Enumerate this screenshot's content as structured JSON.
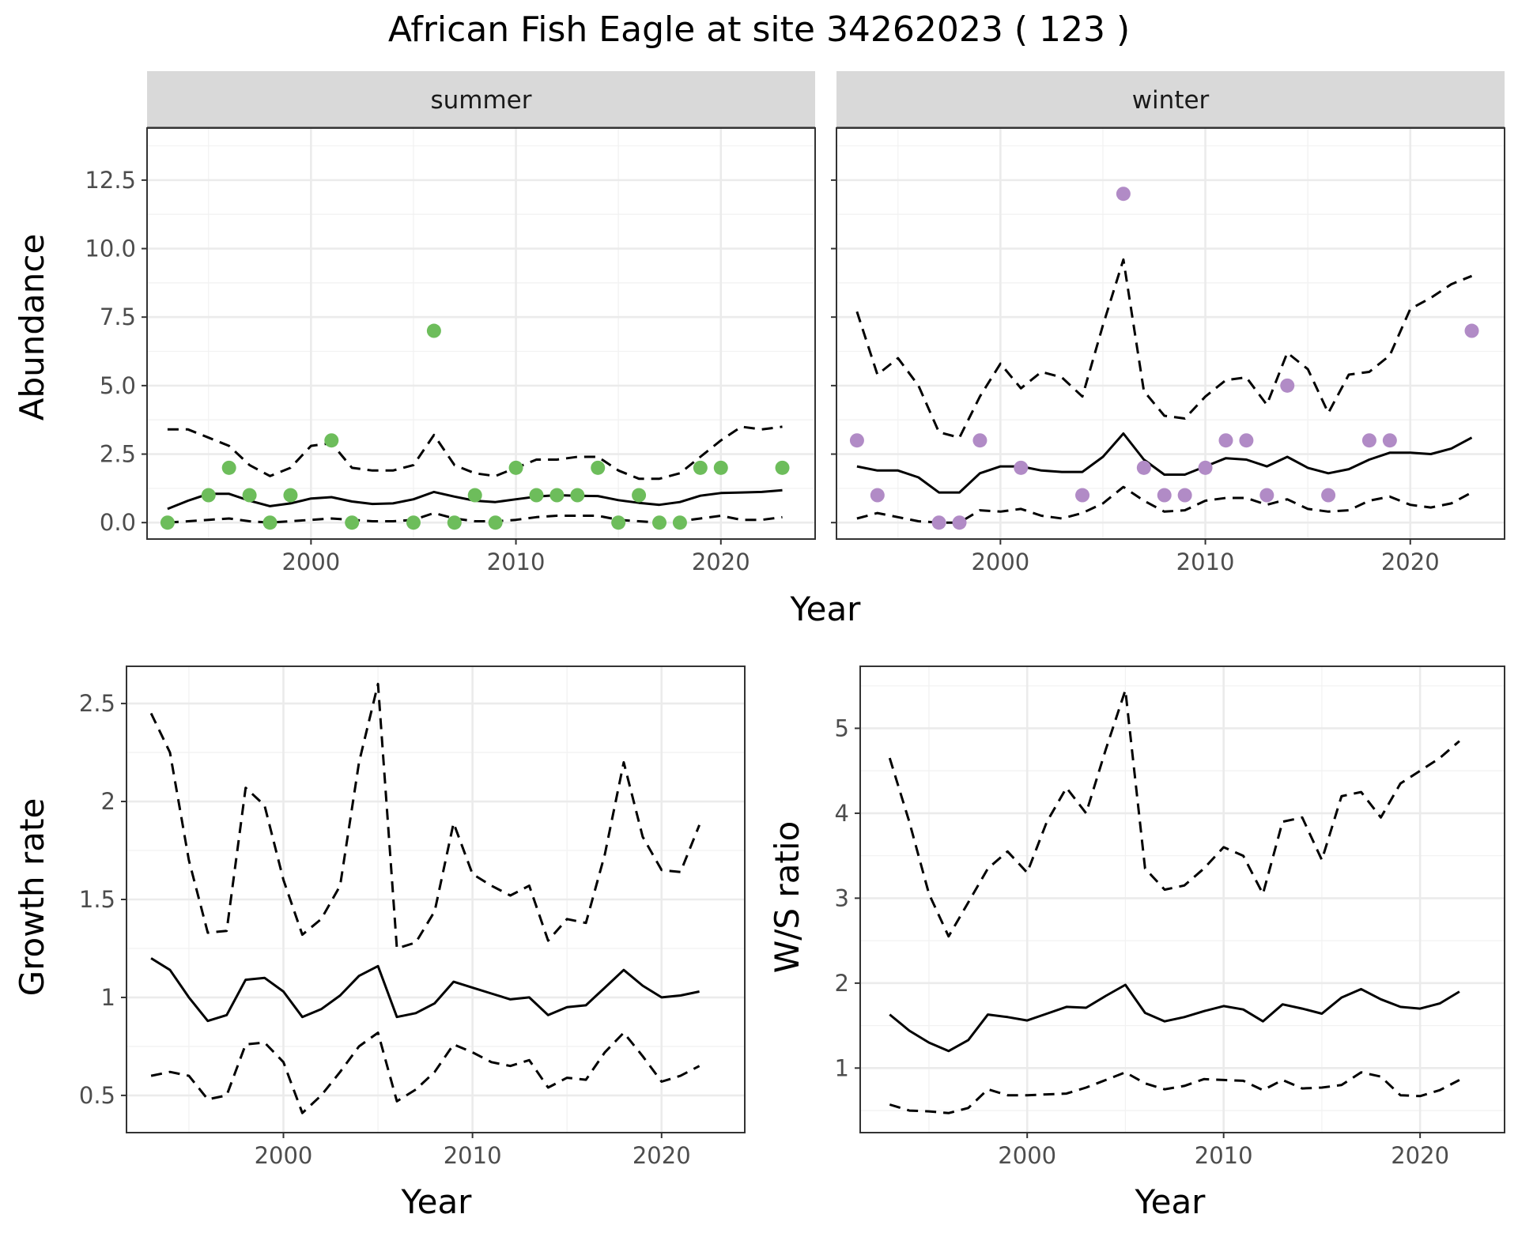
{
  "chart_data": [
    {
      "type": "scatter",
      "facet": "summer",
      "title": "African Fish Eagle at site 34262023 ( 123 )",
      "xlabel": "Year",
      "ylabel": "Abundance",
      "xlim": [
        1992.0,
        2024.6
      ],
      "ylim": [
        -0.6,
        14.4
      ],
      "x_ticks": [
        2000,
        2010,
        2020
      ],
      "y_ticks": [
        0.0,
        2.5,
        5.0,
        7.5,
        10.0,
        12.5
      ],
      "y_tick_labels": [
        "0.0",
        "2.5",
        "5.0",
        "7.5",
        "10.0",
        "12.5"
      ],
      "point_color": "#6dbd5b",
      "points": {
        "x": [
          1993,
          1995,
          1996,
          1997,
          1998,
          1999,
          2001,
          2002,
          2005,
          2006,
          2007,
          2008,
          2009,
          2010,
          2011,
          2012,
          2013,
          2014,
          2015,
          2016,
          2017,
          2018,
          2019,
          2020,
          2023
        ],
        "y": [
          0,
          1,
          2,
          1,
          0,
          1,
          3,
          0,
          0,
          7,
          0,
          1,
          0,
          2,
          1,
          1,
          1,
          2,
          0,
          1,
          0,
          0,
          2,
          2,
          2
        ]
      },
      "series": [
        {
          "role": "estimate",
          "x": [
            1993,
            1994,
            1995,
            1996,
            1997,
            1998,
            1999,
            2000,
            2001,
            2002,
            2003,
            2004,
            2005,
            2006,
            2007,
            2008,
            2009,
            2010,
            2011,
            2012,
            2013,
            2014,
            2015,
            2016,
            2017,
            2018,
            2019,
            2020,
            2021,
            2022,
            2023
          ],
          "y": [
            0.5,
            0.8,
            1.05,
            1.05,
            0.8,
            0.6,
            0.7,
            0.88,
            0.93,
            0.77,
            0.68,
            0.7,
            0.85,
            1.12,
            0.95,
            0.8,
            0.75,
            0.85,
            0.95,
            1.0,
            0.98,
            0.97,
            0.82,
            0.72,
            0.65,
            0.75,
            0.98,
            1.08,
            1.1,
            1.12,
            1.18
          ]
        },
        {
          "role": "upper",
          "x": [
            1993,
            1994,
            1995,
            1996,
            1997,
            1998,
            1999,
            2000,
            2001,
            2002,
            2003,
            2004,
            2005,
            2006,
            2007,
            2008,
            2009,
            2010,
            2011,
            2012,
            2013,
            2014,
            2015,
            2016,
            2017,
            2018,
            2019,
            2020,
            2021,
            2022,
            2023
          ],
          "y": [
            3.4,
            3.4,
            3.1,
            2.8,
            2.1,
            1.7,
            2.0,
            2.8,
            2.9,
            2.0,
            1.9,
            1.9,
            2.1,
            3.2,
            2.1,
            1.8,
            1.7,
            2.0,
            2.3,
            2.3,
            2.4,
            2.4,
            1.9,
            1.6,
            1.6,
            1.8,
            2.4,
            3.0,
            3.5,
            3.4,
            3.5
          ]
        },
        {
          "role": "lower",
          "x": [
            1993,
            1994,
            1995,
            1996,
            1997,
            1998,
            1999,
            2000,
            2001,
            2002,
            2003,
            2004,
            2005,
            2006,
            2007,
            2008,
            2009,
            2010,
            2011,
            2012,
            2013,
            2014,
            2015,
            2016,
            2017,
            2018,
            2019,
            2020,
            2021,
            2022,
            2023
          ],
          "y": [
            0.0,
            0.05,
            0.1,
            0.15,
            0.05,
            0.0,
            0.05,
            0.1,
            0.15,
            0.1,
            0.05,
            0.05,
            0.1,
            0.35,
            0.15,
            0.05,
            0.05,
            0.1,
            0.2,
            0.25,
            0.25,
            0.25,
            0.1,
            0.05,
            0.0,
            0.05,
            0.15,
            0.25,
            0.1,
            0.1,
            0.2
          ]
        }
      ]
    },
    {
      "type": "scatter",
      "facet": "winter",
      "xlabel": "Year",
      "ylabel": "Abundance",
      "xlim": [
        1992.0,
        2024.6
      ],
      "ylim": [
        -0.6,
        14.4
      ],
      "x_ticks": [
        2000,
        2010,
        2020
      ],
      "y_ticks": [
        0.0,
        2.5,
        5.0,
        7.5,
        10.0,
        12.5
      ],
      "point_color": "#b18bc6",
      "points": {
        "x": [
          1993,
          1994,
          1997,
          1998,
          1999,
          2001,
          2004,
          2006,
          2007,
          2008,
          2009,
          2010,
          2011,
          2012,
          2013,
          2014,
          2016,
          2018,
          2019,
          2023
        ],
        "y": [
          3,
          1,
          0,
          0,
          3,
          2,
          1,
          12,
          2,
          1,
          1,
          2,
          3,
          3,
          1,
          5,
          1,
          3,
          3,
          7
        ]
      },
      "series": [
        {
          "role": "estimate",
          "x": [
            1993,
            1994,
            1995,
            1996,
            1997,
            1998,
            1999,
            2000,
            2001,
            2002,
            2003,
            2004,
            2005,
            2006,
            2007,
            2008,
            2009,
            2010,
            2011,
            2012,
            2013,
            2014,
            2015,
            2016,
            2017,
            2018,
            2019,
            2020,
            2021,
            2022,
            2023
          ],
          "y": [
            2.05,
            1.9,
            1.9,
            1.65,
            1.1,
            1.1,
            1.8,
            2.05,
            2.05,
            1.9,
            1.85,
            1.85,
            2.4,
            3.25,
            2.3,
            1.75,
            1.75,
            2.05,
            2.35,
            2.3,
            2.05,
            2.4,
            2.0,
            1.8,
            1.95,
            2.3,
            2.55,
            2.55,
            2.5,
            2.7,
            3.1
          ]
        },
        {
          "role": "upper",
          "x": [
            1993,
            1994,
            1995,
            1996,
            1997,
            1998,
            1999,
            2000,
            2001,
            2002,
            2003,
            2004,
            2005,
            2006,
            2007,
            2008,
            2009,
            2010,
            2011,
            2012,
            2013,
            2014,
            2015,
            2016,
            2017,
            2018,
            2019,
            2020,
            2021,
            2022,
            2023
          ],
          "y": [
            7.7,
            5.4,
            6.0,
            5.0,
            3.3,
            3.1,
            4.6,
            5.8,
            4.9,
            5.5,
            5.3,
            4.6,
            7.2,
            9.6,
            4.8,
            3.9,
            3.8,
            4.6,
            5.2,
            5.3,
            4.3,
            6.2,
            5.6,
            4.0,
            5.4,
            5.5,
            6.1,
            7.8,
            8.2,
            8.7,
            9.0
          ]
        },
        {
          "role": "lower",
          "x": [
            1993,
            1994,
            1995,
            1996,
            1997,
            1998,
            1999,
            2000,
            2001,
            2002,
            2003,
            2004,
            2005,
            2006,
            2007,
            2008,
            2009,
            2010,
            2011,
            2012,
            2013,
            2014,
            2015,
            2016,
            2017,
            2018,
            2019,
            2020,
            2021,
            2022,
            2023
          ],
          "y": [
            0.15,
            0.35,
            0.2,
            0.05,
            0.0,
            0.0,
            0.45,
            0.4,
            0.5,
            0.25,
            0.15,
            0.35,
            0.7,
            1.3,
            0.8,
            0.4,
            0.45,
            0.8,
            0.9,
            0.9,
            0.65,
            0.85,
            0.5,
            0.4,
            0.45,
            0.8,
            0.95,
            0.65,
            0.55,
            0.7,
            1.1
          ]
        }
      ]
    },
    {
      "type": "line",
      "xlabel": "Year",
      "ylabel": "Growth rate",
      "xlim": [
        1991.7,
        2024.4
      ],
      "ylim": [
        0.31,
        2.69
      ],
      "x_ticks": [
        2000,
        2010,
        2020
      ],
      "y_ticks": [
        0.5,
        1.0,
        1.5,
        2.0,
        2.5
      ],
      "series": [
        {
          "role": "estimate",
          "x": [
            1993,
            1994,
            1995,
            1996,
            1997,
            1998,
            1999,
            2000,
            2001,
            2002,
            2003,
            2004,
            2005,
            2006,
            2007,
            2008,
            2009,
            2010,
            2011,
            2012,
            2013,
            2014,
            2015,
            2016,
            2017,
            2018,
            2019,
            2020,
            2021,
            2022
          ],
          "y": [
            1.2,
            1.14,
            1.0,
            0.88,
            0.91,
            1.09,
            1.1,
            1.03,
            0.9,
            0.94,
            1.01,
            1.11,
            1.16,
            0.9,
            0.92,
            0.97,
            1.08,
            1.05,
            1.02,
            0.99,
            1.0,
            0.91,
            0.95,
            0.96,
            1.05,
            1.14,
            1.06,
            1.0,
            1.01,
            1.03
          ]
        },
        {
          "role": "upper",
          "x": [
            1993,
            1994,
            1995,
            1996,
            1997,
            1998,
            1999,
            2000,
            2001,
            2002,
            2003,
            2004,
            2005,
            2006,
            2007,
            2008,
            2009,
            2010,
            2011,
            2012,
            2013,
            2014,
            2015,
            2016,
            2017,
            2018,
            2019,
            2020,
            2021,
            2022
          ],
          "y": [
            2.45,
            2.25,
            1.7,
            1.33,
            1.34,
            2.07,
            1.98,
            1.6,
            1.32,
            1.4,
            1.57,
            2.2,
            2.6,
            1.25,
            1.28,
            1.44,
            1.89,
            1.63,
            1.57,
            1.52,
            1.57,
            1.29,
            1.4,
            1.38,
            1.73,
            2.2,
            1.82,
            1.65,
            1.64,
            1.88
          ]
        },
        {
          "role": "lower",
          "x": [
            1993,
            1994,
            1995,
            1996,
            1997,
            1998,
            1999,
            2000,
            2001,
            2002,
            2003,
            2004,
            2005,
            2006,
            2007,
            2008,
            2009,
            2010,
            2011,
            2012,
            2013,
            2014,
            2015,
            2016,
            2017,
            2018,
            2019,
            2020,
            2021,
            2022
          ],
          "y": [
            0.6,
            0.62,
            0.6,
            0.48,
            0.5,
            0.76,
            0.77,
            0.67,
            0.41,
            0.5,
            0.62,
            0.75,
            0.82,
            0.47,
            0.53,
            0.62,
            0.76,
            0.72,
            0.67,
            0.65,
            0.68,
            0.54,
            0.59,
            0.58,
            0.72,
            0.82,
            0.7,
            0.57,
            0.6,
            0.65
          ]
        }
      ]
    },
    {
      "type": "line",
      "xlabel": "Year",
      "ylabel": "W/S ratio",
      "xlim": [
        1991.5,
        2024.3
      ],
      "ylim": [
        0.24,
        5.73
      ],
      "x_ticks": [
        2000,
        2010,
        2020
      ],
      "y_ticks": [
        1,
        2,
        3,
        4,
        5
      ],
      "series": [
        {
          "role": "estimate",
          "x": [
            1993,
            1994,
            1995,
            1996,
            1997,
            1998,
            1999,
            2000,
            2001,
            2002,
            2003,
            2004,
            2005,
            2006,
            2007,
            2008,
            2009,
            2010,
            2011,
            2012,
            2013,
            2014,
            2015,
            2016,
            2017,
            2018,
            2019,
            2020,
            2021,
            2022
          ],
          "y": [
            1.63,
            1.44,
            1.3,
            1.2,
            1.33,
            1.63,
            1.6,
            1.56,
            1.64,
            1.72,
            1.71,
            1.85,
            1.98,
            1.65,
            1.55,
            1.6,
            1.67,
            1.73,
            1.69,
            1.55,
            1.75,
            1.7,
            1.64,
            1.83,
            1.93,
            1.81,
            1.72,
            1.7,
            1.76,
            1.9
          ]
        },
        {
          "role": "upper",
          "x": [
            1993,
            1994,
            1995,
            1996,
            1997,
            1998,
            1999,
            2000,
            2001,
            2002,
            2003,
            2004,
            2005,
            2006,
            2007,
            2008,
            2009,
            2010,
            2011,
            2012,
            2013,
            2014,
            2015,
            2016,
            2017,
            2018,
            2019,
            2020,
            2021,
            2022
          ],
          "y": [
            4.65,
            3.9,
            3.05,
            2.55,
            2.95,
            3.35,
            3.55,
            3.3,
            3.9,
            4.3,
            4.0,
            4.75,
            5.45,
            3.35,
            3.1,
            3.15,
            3.35,
            3.6,
            3.5,
            3.05,
            3.9,
            3.95,
            3.45,
            4.2,
            4.25,
            3.95,
            4.35,
            4.5,
            4.65,
            4.85
          ]
        },
        {
          "role": "lower",
          "x": [
            1993,
            1994,
            1995,
            1996,
            1997,
            1998,
            1999,
            2000,
            2001,
            2002,
            2003,
            2004,
            2005,
            2006,
            2007,
            2008,
            2009,
            2010,
            2011,
            2012,
            2013,
            2014,
            2015,
            2016,
            2017,
            2018,
            2019,
            2020,
            2021,
            2022
          ],
          "y": [
            0.57,
            0.5,
            0.49,
            0.47,
            0.53,
            0.75,
            0.68,
            0.68,
            0.69,
            0.7,
            0.77,
            0.86,
            0.95,
            0.82,
            0.75,
            0.79,
            0.87,
            0.86,
            0.85,
            0.74,
            0.86,
            0.76,
            0.77,
            0.8,
            0.95,
            0.9,
            0.68,
            0.67,
            0.74,
            0.86
          ]
        }
      ]
    }
  ]
}
